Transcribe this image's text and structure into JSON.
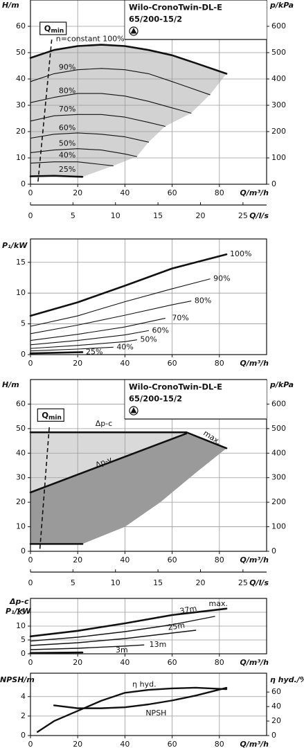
{
  "chart_data": [
    {
      "type": "line",
      "title": "Wilo-CronoTwin-DL-E",
      "subtitle": "65/200-15/2",
      "y_label": "H/m",
      "y2_label": "p/kPa",
      "x_label": "Q/m³/h",
      "x2_label": "Q/l/s",
      "xlim": [
        0,
        100
      ],
      "xticks": [
        0,
        20,
        40,
        60,
        80
      ],
      "ylim": [
        0,
        70
      ],
      "yticks": [
        0,
        10,
        20,
        30,
        40,
        50,
        60
      ],
      "y2lim": [
        0,
        700
      ],
      "y2ticks": [
        0,
        100,
        200,
        300,
        400,
        500,
        600
      ],
      "x2lim": [
        0,
        27.78
      ],
      "x2ticks": [
        0,
        5,
        10,
        15,
        20,
        25
      ],
      "grid": true,
      "qmin": {
        "text": "Q",
        "subscript": "min",
        "x": [
          3.2,
          9
        ],
        "values": [
          1,
          55
        ]
      },
      "areas": [
        {
          "color": "#d2d2d2",
          "x": [
            0,
            10,
            20,
            30,
            40,
            50,
            60,
            70,
            83,
            76,
            68,
            57,
            50,
            45,
            35,
            22,
            0
          ],
          "values": [
            48,
            51,
            52.5,
            53,
            52.5,
            51,
            49,
            46,
            42,
            34,
            27,
            22,
            16,
            10.5,
            7,
            2.8,
            3
          ]
        }
      ],
      "series": [
        {
          "name": "n=constant 100%",
          "color": "#111111",
          "width": 2.6,
          "x": [
            0,
            10,
            20,
            30,
            40,
            50,
            60,
            70,
            83
          ],
          "values": [
            48,
            51,
            52.5,
            53,
            52.5,
            51,
            49,
            46,
            42
          ]
        },
        {
          "name": "90%",
          "color": "#111111",
          "width": 1.1,
          "x": [
            0,
            10,
            20,
            30,
            40,
            50,
            60,
            76
          ],
          "values": [
            39,
            42,
            43.5,
            44,
            43.5,
            42,
            39,
            34
          ]
        },
        {
          "name": "80%",
          "color": "#111111",
          "width": 1.1,
          "x": [
            0,
            10,
            20,
            30,
            40,
            50,
            60,
            68
          ],
          "values": [
            31,
            33,
            34.5,
            34.5,
            33.5,
            31.5,
            29,
            27
          ]
        },
        {
          "name": "70%",
          "color": "#111111",
          "width": 1.1,
          "x": [
            0,
            10,
            20,
            30,
            40,
            50,
            57
          ],
          "values": [
            24,
            26,
            26.5,
            26.5,
            25.5,
            23.5,
            22
          ]
        },
        {
          "name": "60%",
          "color": "#111111",
          "width": 1.1,
          "x": [
            0,
            10,
            20,
            30,
            40,
            50
          ],
          "values": [
            17.5,
            19,
            19.5,
            19,
            18,
            16
          ]
        },
        {
          "name": "50%",
          "color": "#111111",
          "width": 1.1,
          "x": [
            0,
            10,
            20,
            30,
            40,
            45
          ],
          "values": [
            12,
            13,
            13.5,
            13,
            11.5,
            10.5
          ]
        },
        {
          "name": "40%",
          "color": "#111111",
          "width": 1.1,
          "x": [
            0,
            10,
            20,
            30,
            35
          ],
          "values": [
            8,
            8.5,
            8.5,
            7.5,
            7
          ]
        },
        {
          "name": "25%",
          "color": "#111111",
          "width": 2.6,
          "x": [
            0,
            10,
            22
          ],
          "values": [
            3,
            3.2,
            2.8
          ]
        }
      ]
    },
    {
      "type": "line",
      "y_label": "P₁/kW",
      "x_label": "Q/m³/h",
      "xlim": [
        0,
        100
      ],
      "xticks": [
        0,
        20,
        40,
        60,
        80
      ],
      "ylim": [
        0,
        18.8
      ],
      "yticks": [
        0,
        5,
        10,
        15
      ],
      "grid": true,
      "series": [
        {
          "name": "100%",
          "color": "#111111",
          "width": 2.6,
          "x": [
            0,
            20,
            40,
            60,
            83
          ],
          "values": [
            6.3,
            8.5,
            11.2,
            14,
            16.3
          ]
        },
        {
          "name": "90%",
          "color": "#111111",
          "width": 1.1,
          "x": [
            0,
            20,
            40,
            60,
            76
          ],
          "values": [
            4.6,
            6.3,
            8.6,
            10.7,
            12.3
          ]
        },
        {
          "name": "80%",
          "color": "#111111",
          "width": 1.1,
          "x": [
            0,
            20,
            40,
            60,
            68
          ],
          "values": [
            3.4,
            4.8,
            6.4,
            8.1,
            8.7
          ]
        },
        {
          "name": "70%",
          "color": "#111111",
          "width": 1.1,
          "x": [
            0,
            20,
            40,
            57
          ],
          "values": [
            2.3,
            3.3,
            4.5,
            5.9
          ]
        },
        {
          "name": "60%",
          "color": "#111111",
          "width": 1.1,
          "x": [
            0,
            20,
            40,
            50
          ],
          "values": [
            1.6,
            2.3,
            3.2,
            3.9
          ]
        },
        {
          "name": "50%",
          "color": "#111111",
          "width": 1.1,
          "x": [
            0,
            20,
            40,
            45
          ],
          "values": [
            1,
            1.5,
            2.1,
            2.4
          ]
        },
        {
          "name": "40%",
          "color": "#111111",
          "width": 1.1,
          "x": [
            0,
            20,
            35
          ],
          "values": [
            0.6,
            0.9,
            1.2
          ]
        },
        {
          "name": "25%",
          "color": "#111111",
          "width": 2.6,
          "x": [
            0,
            22
          ],
          "values": [
            0.2,
            0.4
          ]
        }
      ]
    },
    {
      "type": "line",
      "title": "Wilo-CronoTwin-DL-E",
      "subtitle": "65/200-15/2",
      "y_label": "H/m",
      "y2_label": "p/kPa",
      "x_label": "Q/m³/h",
      "x2_label": "Q/l/s",
      "xlim": [
        0,
        100
      ],
      "xticks": [
        0,
        20,
        40,
        60,
        80
      ],
      "ylim": [
        0,
        70
      ],
      "yticks": [
        0,
        10,
        20,
        30,
        40,
        50,
        60
      ],
      "y2lim": [
        0,
        700
      ],
      "y2ticks": [
        0,
        100,
        200,
        300,
        400,
        500,
        600
      ],
      "x2lim": [
        0,
        27.78
      ],
      "x2ticks": [
        0,
        5,
        10,
        15,
        20,
        25
      ],
      "grid": true,
      "qmin": {
        "text": "Q",
        "subscript": "min",
        "x": [
          4,
          8
        ],
        "values": [
          1,
          51
        ]
      },
      "areas": [
        {
          "color": "#d9d9d9",
          "x": [
            0,
            66,
            0
          ],
          "values": [
            48.5,
            48.5,
            24
          ]
        },
        {
          "color": "#9a9a9a",
          "x": [
            0,
            66,
            83,
            70,
            55,
            40,
            22,
            0
          ],
          "values": [
            24,
            48,
            42,
            32,
            20,
            10,
            3,
            3
          ]
        }
      ],
      "series": [
        {
          "name": "Δp-c",
          "color": "#111111",
          "width": 2.6,
          "x": [
            0,
            66
          ],
          "values": [
            48.5,
            48.5
          ]
        },
        {
          "name": "Δp-v",
          "color": "#111111",
          "width": 2.6,
          "x": [
            0,
            66
          ],
          "values": [
            24,
            48
          ]
        },
        {
          "name": "max.",
          "color": "#111111",
          "width": 2.6,
          "x": [
            66,
            83
          ],
          "values": [
            48.5,
            42
          ]
        },
        {
          "color": "#111111",
          "width": 2.6,
          "x": [
            0,
            22
          ],
          "values": [
            3,
            3
          ]
        }
      ]
    },
    {
      "type": "line",
      "control_mode": "Δp-c",
      "y_label": "P₁/kW",
      "x_label": "Q/m³/h",
      "xlim": [
        0,
        100
      ],
      "xticks": [
        0,
        20,
        40,
        60,
        80
      ],
      "ylim": [
        0,
        20
      ],
      "yticks": [
        0,
        5,
        10,
        15
      ],
      "grid": true,
      "series": [
        {
          "name": "max.",
          "color": "#111111",
          "width": 2.6,
          "x": [
            0,
            20,
            40,
            60,
            83
          ],
          "values": [
            6.3,
            8.3,
            11,
            14,
            16.3
          ]
        },
        {
          "name": "37m",
          "color": "#111111",
          "width": 1.4,
          "x": [
            0,
            20,
            40,
            60,
            78
          ],
          "values": [
            4.6,
            6,
            8,
            10.5,
            13.5
          ]
        },
        {
          "name": "25m",
          "color": "#111111",
          "width": 1.4,
          "x": [
            0,
            20,
            40,
            60,
            70
          ],
          "values": [
            3,
            4,
            5.5,
            7.5,
            8.5
          ]
        },
        {
          "name": "13m",
          "color": "#111111",
          "width": 1.4,
          "x": [
            0,
            20,
            40,
            48
          ],
          "values": [
            1.5,
            2,
            2.8,
            3.2
          ]
        },
        {
          "name": "3m",
          "color": "#111111",
          "width": 2.6,
          "x": [
            0,
            22
          ],
          "values": [
            0.3,
            0.5
          ]
        }
      ]
    },
    {
      "type": "line",
      "y_label": "NPSH/m",
      "y2_label": "η hyd./%",
      "x_label": "Q/m³/h",
      "xlim": [
        0,
        100
      ],
      "xticks": [
        0,
        20,
        40,
        60,
        80
      ],
      "ylim": [
        0,
        6.4
      ],
      "yticks": [
        0,
        2,
        4
      ],
      "y2lim": [
        0,
        86
      ],
      "y2ticks": [
        0,
        20,
        40,
        60
      ],
      "grid": true,
      "series": [
        {
          "name": "η hyd.",
          "axis": "y2",
          "color": "#111111",
          "width": 2.4,
          "x": [
            3,
            10,
            20,
            30,
            40,
            50,
            60,
            70,
            83
          ],
          "values": [
            5,
            20,
            34,
            48,
            59,
            63,
            65,
            66,
            64
          ]
        },
        {
          "name": "NPSH",
          "color": "#111111",
          "width": 2.4,
          "x": [
            10,
            20,
            30,
            40,
            50,
            60,
            70,
            83
          ],
          "values": [
            3.1,
            2.8,
            2.8,
            2.9,
            3.2,
            3.6,
            4.1,
            4.9
          ]
        }
      ]
    }
  ]
}
